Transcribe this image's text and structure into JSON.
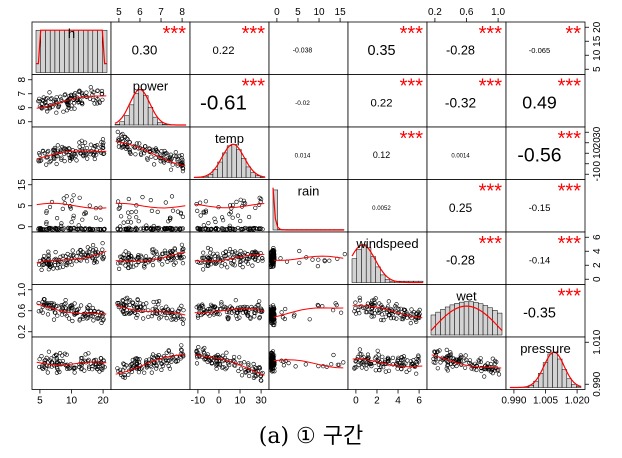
{
  "chart_data": {
    "type": "scatter-matrix",
    "variables": [
      "h",
      "power",
      "temp",
      "rain",
      "windspeed",
      "wet",
      "pressure"
    ],
    "diagonal": "histogram-with-density",
    "lower": "scatter-with-loess",
    "upper": "correlation",
    "correlations": [
      {
        "row": "h",
        "col": "power",
        "value": "0.30",
        "stars": "***"
      },
      {
        "row": "h",
        "col": "temp",
        "value": "0.22",
        "stars": "***"
      },
      {
        "row": "h",
        "col": "rain",
        "value": "-0.038",
        "stars": ""
      },
      {
        "row": "h",
        "col": "windspeed",
        "value": "0.35",
        "stars": "***"
      },
      {
        "row": "h",
        "col": "wet",
        "value": "-0.28",
        "stars": "***"
      },
      {
        "row": "h",
        "col": "pressure",
        "value": "-0.065",
        "stars": "**"
      },
      {
        "row": "power",
        "col": "temp",
        "value": "-0.61",
        "stars": "***"
      },
      {
        "row": "power",
        "col": "rain",
        "value": "-0.02",
        "stars": ""
      },
      {
        "row": "power",
        "col": "windspeed",
        "value": "0.22",
        "stars": "***"
      },
      {
        "row": "power",
        "col": "wet",
        "value": "-0.32",
        "stars": "***"
      },
      {
        "row": "power",
        "col": "pressure",
        "value": "0.49",
        "stars": "***"
      },
      {
        "row": "temp",
        "col": "rain",
        "value": "0.014",
        "stars": ""
      },
      {
        "row": "temp",
        "col": "windspeed",
        "value": "0.12",
        "stars": "***"
      },
      {
        "row": "temp",
        "col": "wet",
        "value": "0.0014",
        "stars": ""
      },
      {
        "row": "temp",
        "col": "pressure",
        "value": "-0.56",
        "stars": "***"
      },
      {
        "row": "rain",
        "col": "windspeed",
        "value": "0.0052",
        "stars": ""
      },
      {
        "row": "rain",
        "col": "wet",
        "value": "0.25",
        "stars": "***"
      },
      {
        "row": "rain",
        "col": "pressure",
        "value": "-0.15",
        "stars": "***"
      },
      {
        "row": "windspeed",
        "col": "wet",
        "value": "-0.28",
        "stars": "***"
      },
      {
        "row": "windspeed",
        "col": "pressure",
        "value": "-0.14",
        "stars": "***"
      },
      {
        "row": "wet",
        "col": "pressure",
        "value": "-0.35",
        "stars": "***"
      }
    ],
    "axis_ticks": {
      "top": [
        {
          "var": "power",
          "ticks": [
            "5",
            "6",
            "7",
            "8"
          ]
        },
        {
          "var": "rain",
          "ticks": [
            "0",
            "5",
            "10",
            "15"
          ]
        },
        {
          "var": "wet",
          "ticks": [
            "0.2",
            "0.6",
            "1.0"
          ]
        }
      ],
      "bottom": [
        {
          "var": "h",
          "ticks": [
            "5",
            "10",
            "20"
          ]
        },
        {
          "var": "temp",
          "ticks": [
            "-10",
            "0",
            "10",
            "30"
          ]
        },
        {
          "var": "windspeed",
          "ticks": [
            "0",
            "2",
            "4",
            "6"
          ]
        },
        {
          "var": "pressure",
          "ticks": [
            "0.990",
            "1.005",
            "1.020"
          ]
        }
      ],
      "left": [
        {
          "var": "power",
          "ticks": [
            "5",
            "6",
            "7",
            "8"
          ]
        },
        {
          "var": "rain",
          "ticks": [
            "0",
            "5",
            "15"
          ]
        },
        {
          "var": "wet",
          "ticks": [
            "0.2",
            "0.6",
            "1.0"
          ]
        }
      ],
      "right": [
        {
          "var": "h",
          "ticks": [
            "5",
            "10",
            "15",
            "20"
          ]
        },
        {
          "var": "temp",
          "ticks": [
            "-10",
            "0",
            "10",
            "20",
            "30"
          ]
        },
        {
          "var": "windspeed",
          "ticks": [
            "0",
            "2",
            "4",
            "6"
          ]
        },
        {
          "var": "pressure",
          "ticks": [
            "0.990",
            "1.010"
          ]
        }
      ]
    },
    "colors": {
      "points": "#000000",
      "smooth": "#ff0000",
      "stars": "#ff0000",
      "bars": "#d3d3d3"
    }
  },
  "caption": "(a) ① 구간"
}
